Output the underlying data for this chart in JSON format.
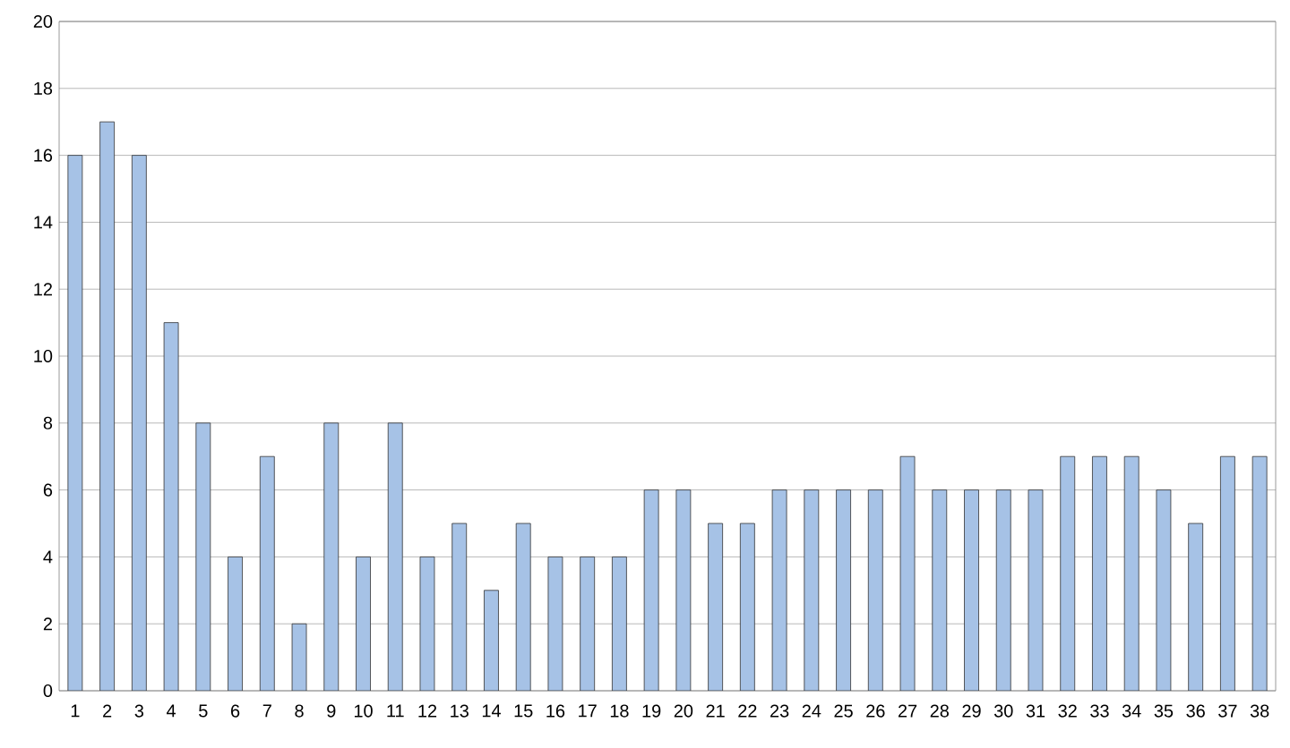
{
  "chart_data": {
    "type": "bar",
    "categories": [
      "1",
      "2",
      "3",
      "4",
      "5",
      "6",
      "7",
      "8",
      "9",
      "10",
      "11",
      "12",
      "13",
      "14",
      "15",
      "16",
      "17",
      "18",
      "19",
      "20",
      "21",
      "22",
      "23",
      "24",
      "25",
      "26",
      "27",
      "28",
      "29",
      "30",
      "31",
      "32",
      "33",
      "34",
      "35",
      "36",
      "37",
      "38"
    ],
    "values": [
      16,
      17,
      16,
      11,
      8,
      4,
      7,
      2,
      8,
      4,
      8,
      4,
      5,
      3,
      5,
      4,
      4,
      4,
      6,
      6,
      5,
      5,
      6,
      6,
      6,
      6,
      7,
      6,
      6,
      6,
      6,
      7,
      7,
      7,
      6,
      5,
      7,
      7
    ],
    "color": "#a6c2e6",
    "ylim": [
      0,
      20
    ],
    "yticks": [
      0,
      2,
      4,
      6,
      8,
      10,
      12,
      14,
      16,
      18,
      20
    ],
    "grid": "y"
  }
}
